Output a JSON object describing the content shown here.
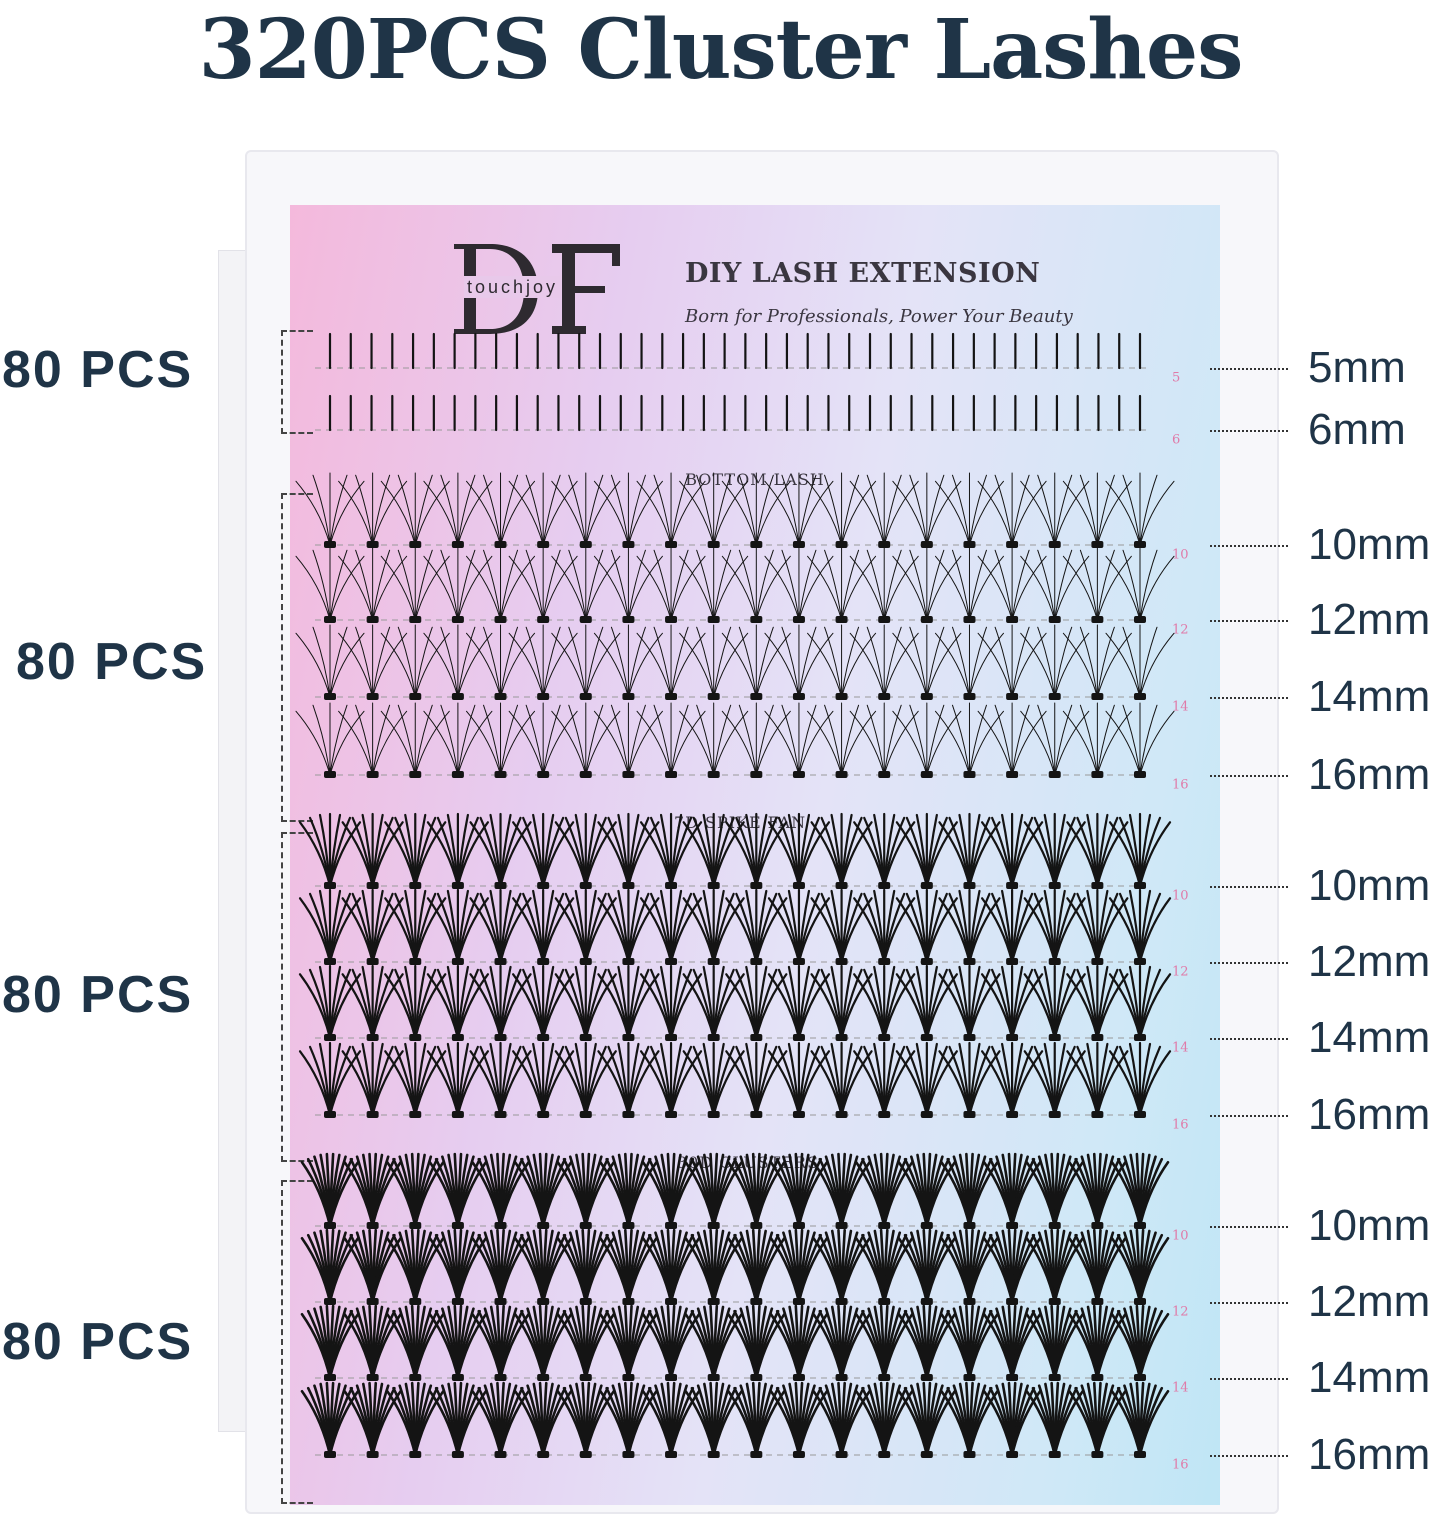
{
  "title": "320PCS Cluster Lashes",
  "logo": {
    "letters": "DF",
    "brand": "touchjoy"
  },
  "heading": "DIY LASH EXTENSION",
  "tagline": "Born for Professionals, Power Your Beauty",
  "colors": {
    "title": "#1f3447",
    "tray_numbers": "#e07aa8",
    "lash": "#141414"
  },
  "sections": [
    {
      "count_label": "80 PCS",
      "lengths": [
        "5mm",
        "6mm"
      ],
      "tray_numbers": [
        "5",
        "6"
      ],
      "style": "spike"
    },
    {
      "name": "BOTTOM LASH",
      "count_label": "80 PCS",
      "lengths": [
        "10mm",
        "12mm",
        "14mm",
        "16mm"
      ],
      "tray_numbers": [
        "10",
        "12",
        "14",
        "16"
      ],
      "style": "wispy"
    },
    {
      "name": "7D SPIKE FAN",
      "count_label": "80 PCS",
      "lengths": [
        "10mm",
        "12mm",
        "14mm",
        "16mm"
      ],
      "tray_numbers": [
        "10",
        "12",
        "14",
        "16"
      ],
      "style": "fan"
    },
    {
      "name": "30D CLUSTERS",
      "count_label": "80 PCS",
      "lengths": [
        "10mm",
        "12mm",
        "14mm",
        "16mm"
      ],
      "tray_numbers": [
        "10",
        "12",
        "14",
        "16"
      ],
      "style": "dense"
    }
  ]
}
